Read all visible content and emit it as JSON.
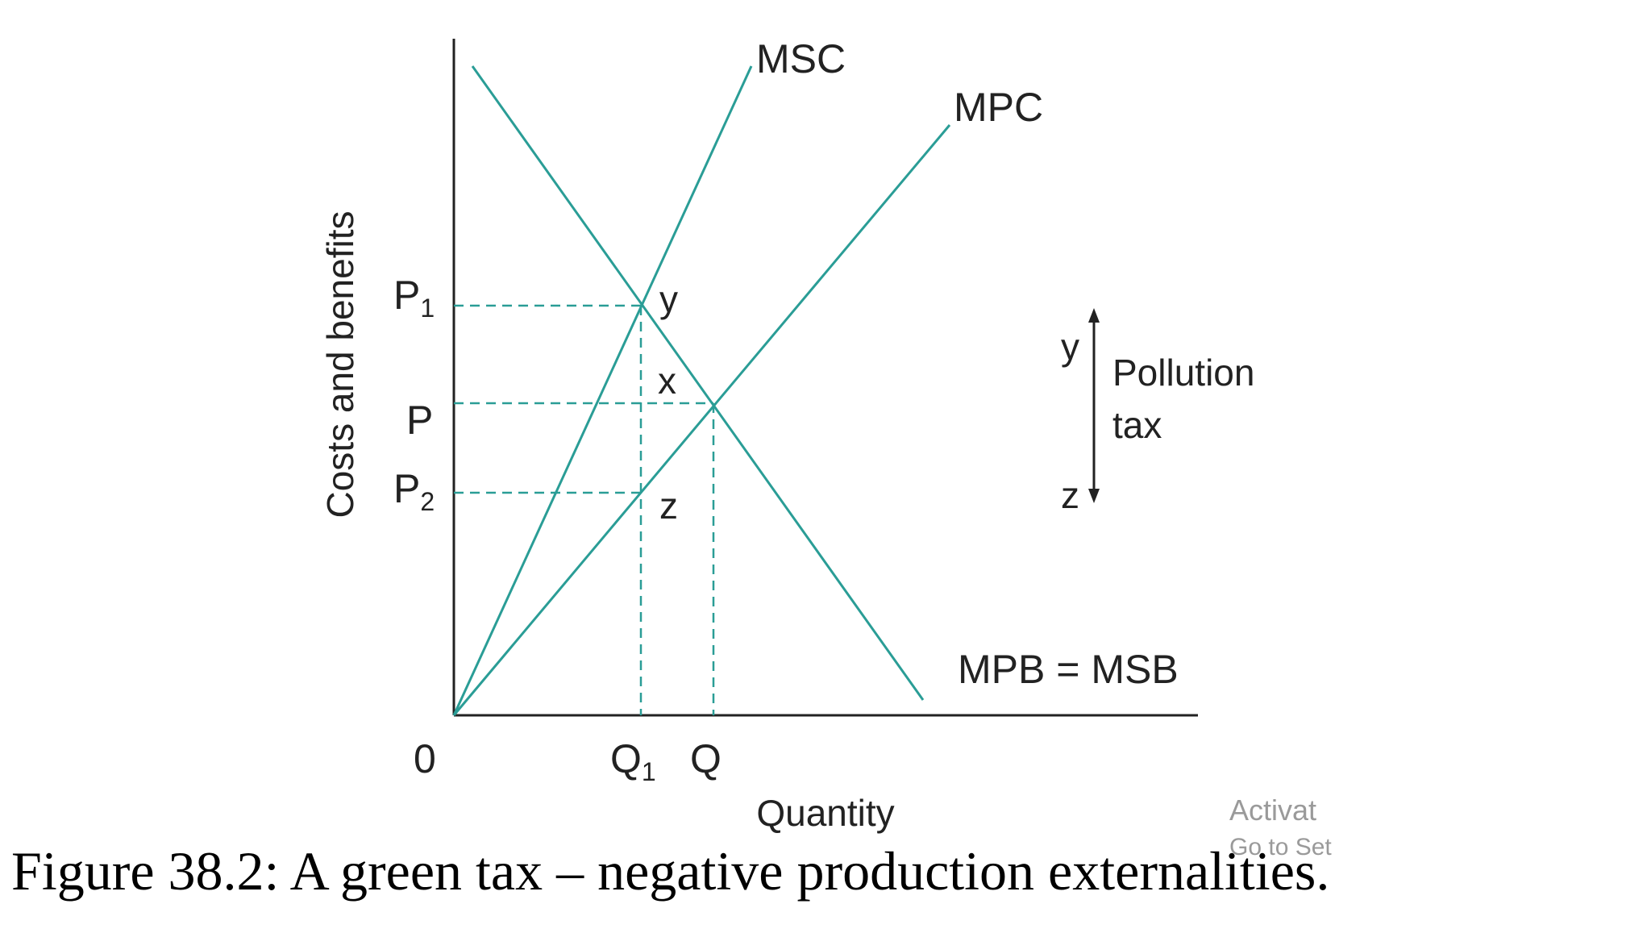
{
  "diagram": {
    "y_axis_label": "Costs and benefits",
    "x_axis_label": "Quantity",
    "origin_label": "0",
    "price_labels": {
      "p1": {
        "base": "P",
        "sub": "1"
      },
      "p": {
        "base": "P",
        "sub": ""
      },
      "p2": {
        "base": "P",
        "sub": "2"
      }
    },
    "quantity_labels": {
      "q1": {
        "base": "Q",
        "sub": "1"
      },
      "q": {
        "base": "Q",
        "sub": ""
      }
    },
    "curves": {
      "msc": "MSC",
      "mpc": "MPC",
      "mpb_msb": "MPB = MSB"
    },
    "points": {
      "y": "y",
      "x": "x",
      "z": "z"
    },
    "tax_annotation": {
      "top": "y",
      "bottom": "z",
      "line1": "Pollution",
      "line2": "tax"
    },
    "line_color": "#2a9d96",
    "axis_color": "#222222"
  },
  "caption": "Figure 38.2: A green tax – negative production externalities.",
  "watermark": {
    "line1": "Activat",
    "line2": "Go to Set"
  }
}
